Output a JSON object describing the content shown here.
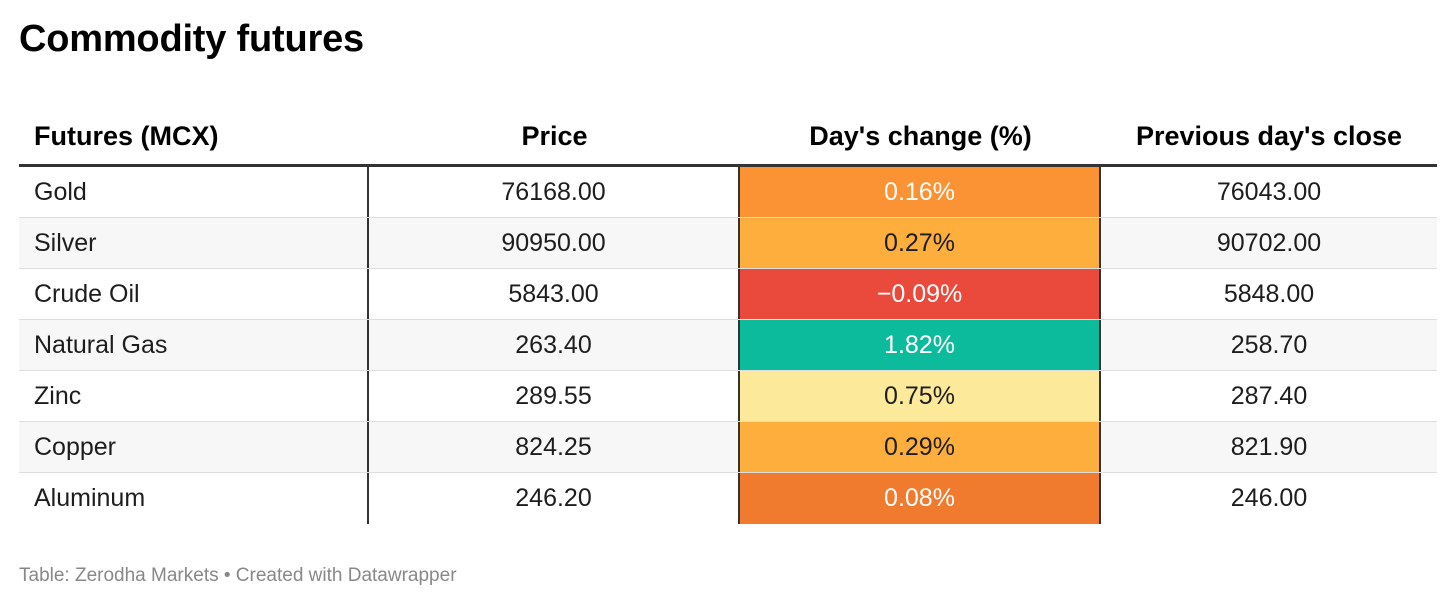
{
  "title": "Commodity futures",
  "footer": "Table: Zerodha Markets • Created with Datawrapper",
  "colors": {
    "orange_dark": "#f07a2e",
    "orange": "#fb9233",
    "orange_light": "#fdae3c",
    "yellow": "#fce99a",
    "red": "#ea4a3c",
    "green": "#0bbb9c"
  },
  "chart_data": {
    "type": "table",
    "title": "Commodity futures",
    "columns": [
      "Futures (MCX)",
      "Price",
      "Day's change (%)",
      "Previous day's close"
    ],
    "rows": [
      {
        "name": "Gold",
        "price": "76168.00",
        "change": "0.16%",
        "change_value": 0.16,
        "prev_close": "76043.00",
        "change_bg": "#fb9233",
        "change_fg": "#ffffff"
      },
      {
        "name": "Silver",
        "price": "90950.00",
        "change": "0.27%",
        "change_value": 0.27,
        "prev_close": "90702.00",
        "change_bg": "#fdae3c",
        "change_fg": "#1d1d1d"
      },
      {
        "name": "Crude Oil",
        "price": "5843.00",
        "change": "−0.09%",
        "change_value": -0.09,
        "prev_close": "5848.00",
        "change_bg": "#ea4a3c",
        "change_fg": "#ffffff"
      },
      {
        "name": "Natural Gas",
        "price": "263.40",
        "change": "1.82%",
        "change_value": 1.82,
        "prev_close": "258.70",
        "change_bg": "#0bbb9c",
        "change_fg": "#ffffff"
      },
      {
        "name": "Zinc",
        "price": "289.55",
        "change": "0.75%",
        "change_value": 0.75,
        "prev_close": "287.40",
        "change_bg": "#fce99a",
        "change_fg": "#1d1d1d"
      },
      {
        "name": "Copper",
        "price": "824.25",
        "change": "0.29%",
        "change_value": 0.29,
        "prev_close": "821.90",
        "change_bg": "#fdae3c",
        "change_fg": "#1d1d1d"
      },
      {
        "name": "Aluminum",
        "price": "246.20",
        "change": "0.08%",
        "change_value": 0.08,
        "prev_close": "246.00",
        "change_bg": "#f07a2e",
        "change_fg": "#ffffff"
      }
    ]
  }
}
